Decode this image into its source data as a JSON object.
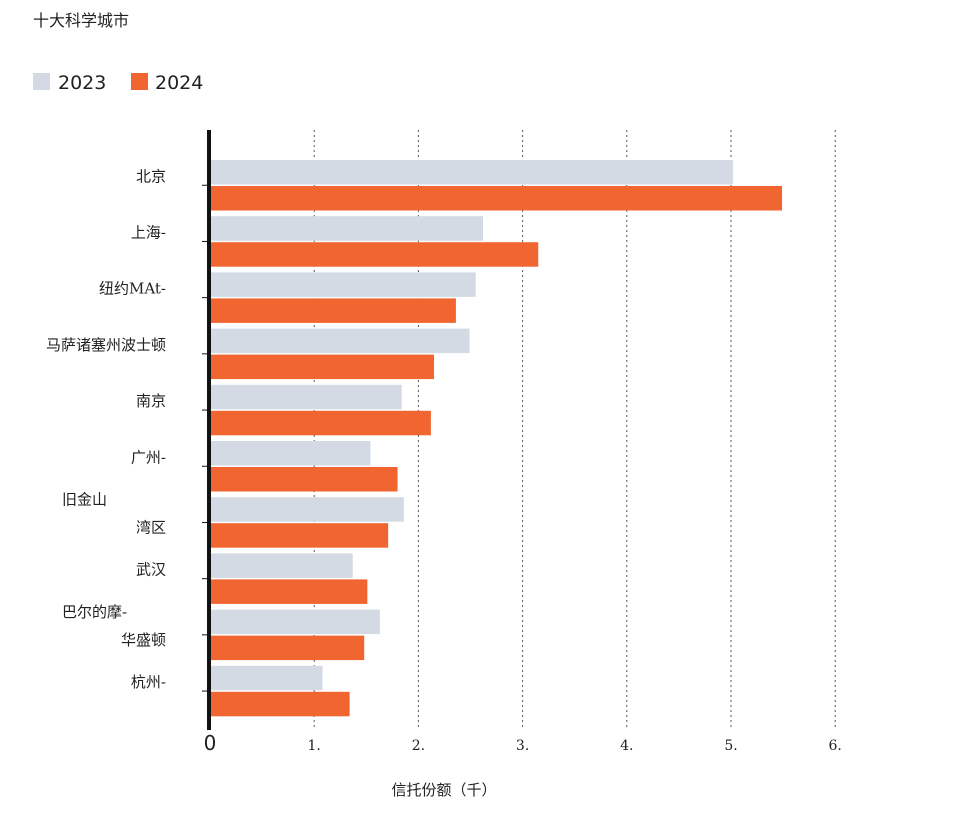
{
  "chart_data": {
    "type": "bar",
    "orientation": "horizontal",
    "title": "十大科学城市",
    "xlabel": "信托份额（千）",
    "ylabel": "",
    "xlim": [
      0,
      6
    ],
    "x_ticks": [
      {
        "value": 0,
        "label": "0"
      },
      {
        "value": 1,
        "label": "1."
      },
      {
        "value": 2,
        "label": "2."
      },
      {
        "value": 3,
        "label": "3."
      },
      {
        "value": 4,
        "label": "4."
      },
      {
        "value": 5,
        "label": "5."
      },
      {
        "value": 6,
        "label": "6."
      }
    ],
    "grid": {
      "x": true,
      "style": "dotted"
    },
    "legend_position": "top-left",
    "categories": [
      [
        "北京"
      ],
      [
        "上海-"
      ],
      [
        "纽约MAt-"
      ],
      [
        "马萨诸塞州波士顿"
      ],
      [
        "南京"
      ],
      [
        "广州-"
      ],
      [
        "旧金山",
        "湾区"
      ],
      [
        "武汉"
      ],
      [
        "巴尔的摩-",
        "华盛顿"
      ],
      [
        "杭州-"
      ]
    ],
    "series": [
      {
        "name": "2023",
        "color": "#d3dae4",
        "values": [
          5.02,
          2.62,
          2.55,
          2.49,
          1.84,
          1.54,
          1.86,
          1.37,
          1.63,
          1.08
        ]
      },
      {
        "name": "2024",
        "color": "#f06530",
        "values": [
          5.49,
          3.15,
          2.36,
          2.15,
          2.12,
          1.8,
          1.71,
          1.51,
          1.48,
          1.34
        ]
      }
    ]
  }
}
